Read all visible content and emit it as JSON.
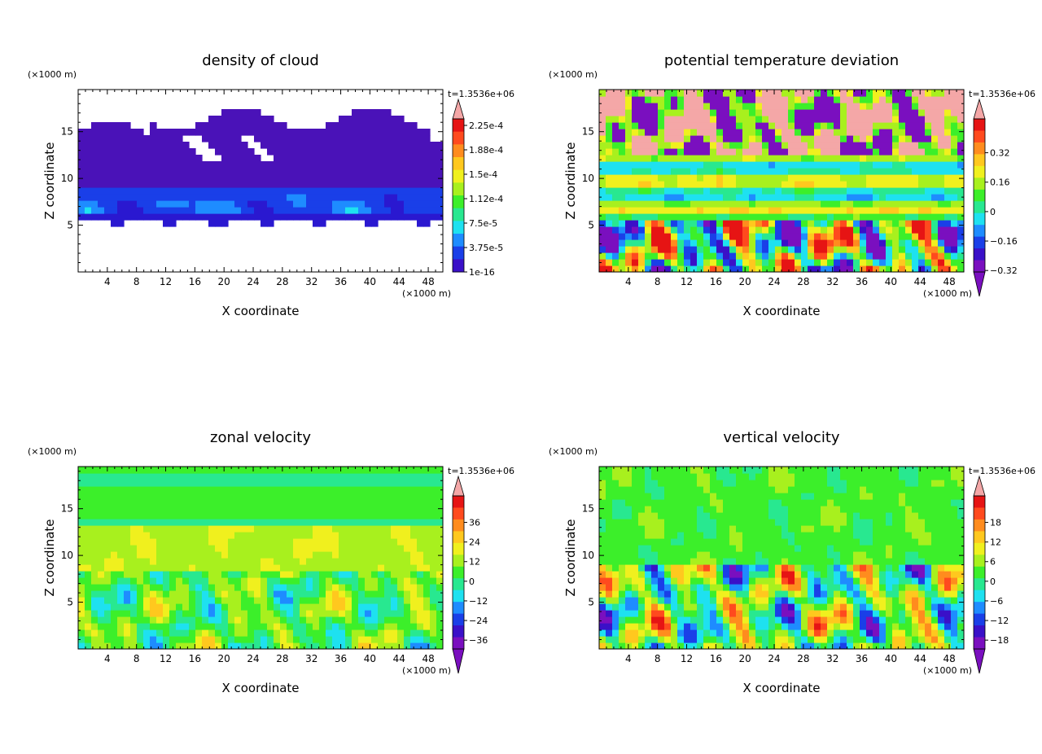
{
  "chart_data": [
    {
      "type": "heatmap",
      "title": "density of cloud",
      "xlabel": "X coordinate",
      "ylabel": "Z coordinate",
      "x_unit": "(×1000 m)",
      "y_unit": "(×1000 m)",
      "time_label": "t=1.3536e+06",
      "xlim": [
        0,
        50
      ],
      "ylim": [
        0,
        19.5
      ],
      "x_ticks": [
        4,
        8,
        12,
        16,
        20,
        24,
        28,
        32,
        36,
        40,
        44,
        48
      ],
      "y_ticks": [
        5,
        10,
        15
      ],
      "colorbar_labels": [
        "2.25e-4",
        "1.88e-4",
        "1.5e-4",
        "1.12e-4",
        "7.5e-5",
        "3.75e-5",
        "1e-16"
      ],
      "field": "cloud"
    },
    {
      "type": "heatmap",
      "title": "potential temperature deviation",
      "xlabel": "X coordinate",
      "ylabel": "Z coordinate",
      "x_unit": "(×1000 m)",
      "y_unit": "(×1000 m)",
      "time_label": "t=1.3536e+06",
      "xlim": [
        0,
        50
      ],
      "ylim": [
        0,
        19.5
      ],
      "x_ticks": [
        4,
        8,
        12,
        16,
        20,
        24,
        28,
        32,
        36,
        40,
        44,
        48
      ],
      "y_ticks": [
        5,
        10,
        15
      ],
      "colorbar_labels": [
        "0.32",
        "0.16",
        "0",
        "−0.16",
        "−0.32"
      ],
      "field": "theta"
    },
    {
      "type": "heatmap",
      "title": "zonal velocity",
      "xlabel": "X coordinate",
      "ylabel": "Z coordinate",
      "x_unit": "(×1000 m)",
      "y_unit": "(×1000 m)",
      "time_label": "t=1.3536e+06",
      "xlim": [
        0,
        50
      ],
      "ylim": [
        0,
        19.5
      ],
      "x_ticks": [
        4,
        8,
        12,
        16,
        20,
        24,
        28,
        32,
        36,
        40,
        44,
        48
      ],
      "y_ticks": [
        5,
        10,
        15
      ],
      "colorbar_labels": [
        "36",
        "24",
        "12",
        "0",
        "−12",
        "−24",
        "−36"
      ],
      "field": "zonal"
    },
    {
      "type": "heatmap",
      "title": "vertical velocity",
      "xlabel": "X coordinate",
      "ylabel": "Z coordinate",
      "x_unit": "(×1000 m)",
      "y_unit": "(×1000 m)",
      "time_label": "t=1.3536e+06",
      "xlim": [
        0,
        50
      ],
      "ylim": [
        0,
        19.5
      ],
      "x_ticks": [
        4,
        8,
        12,
        16,
        20,
        24,
        28,
        32,
        36,
        40,
        44,
        48
      ],
      "y_ticks": [
        5,
        10,
        15
      ],
      "colorbar_labels": [
        "18",
        "12",
        "6",
        "0",
        "−6",
        "−12",
        "−18"
      ],
      "field": "vertical"
    }
  ],
  "colors": {
    "palette": [
      "#7a0fbf",
      "#3a10c8",
      "#1a3fe8",
      "#1e8cff",
      "#1ee1f0",
      "#28e890",
      "#3cef2a",
      "#a8f01e",
      "#f0f01e",
      "#ffc81e",
      "#ff8c1e",
      "#ff4a1e",
      "#e61414",
      "#f4a7a7"
    ],
    "cloud_base": "#4a12b8",
    "frame": "#000000",
    "background": "#ffffff"
  }
}
